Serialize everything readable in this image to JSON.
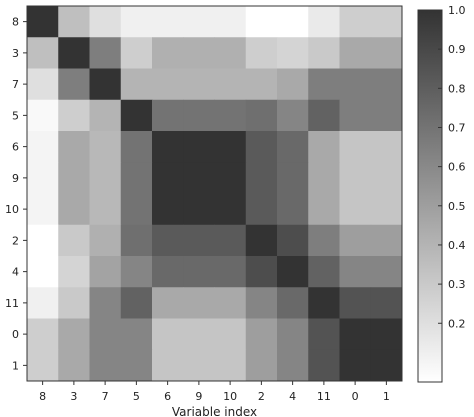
{
  "chart_data": {
    "type": "heatmap",
    "title": "",
    "xlabel": "Variable index",
    "ylabel": "",
    "categories": [
      "8",
      "3",
      "7",
      "5",
      "6",
      "9",
      "10",
      "2",
      "4",
      "11",
      "0",
      "1"
    ],
    "matrix": [
      [
        1.0,
        0.35,
        0.2,
        0.12,
        0.12,
        0.12,
        0.12,
        0.05,
        0.05,
        0.15,
        0.28,
        0.28
      ],
      [
        0.35,
        1.0,
        0.65,
        0.28,
        0.42,
        0.42,
        0.42,
        0.28,
        0.25,
        0.3,
        0.45,
        0.45
      ],
      [
        0.2,
        0.65,
        1.0,
        0.4,
        0.4,
        0.4,
        0.4,
        0.4,
        0.45,
        0.65,
        0.65,
        0.65
      ],
      [
        0.08,
        0.28,
        0.4,
        1.0,
        0.7,
        0.7,
        0.7,
        0.72,
        0.62,
        0.78,
        0.65,
        0.65
      ],
      [
        0.1,
        0.45,
        0.38,
        0.7,
        1.0,
        1.0,
        1.0,
        0.82,
        0.75,
        0.45,
        0.32,
        0.32
      ],
      [
        0.1,
        0.45,
        0.38,
        0.7,
        1.0,
        1.0,
        1.0,
        0.82,
        0.75,
        0.45,
        0.32,
        0.32
      ],
      [
        0.1,
        0.45,
        0.38,
        0.7,
        1.0,
        1.0,
        1.0,
        0.82,
        0.75,
        0.45,
        0.32,
        0.32
      ],
      [
        0.05,
        0.3,
        0.42,
        0.72,
        0.82,
        0.82,
        0.82,
        1.0,
        0.88,
        0.65,
        0.5,
        0.5
      ],
      [
        0.05,
        0.25,
        0.48,
        0.62,
        0.75,
        0.75,
        0.75,
        0.88,
        1.0,
        0.78,
        0.62,
        0.62
      ],
      [
        0.12,
        0.3,
        0.62,
        0.78,
        0.45,
        0.45,
        0.45,
        0.62,
        0.75,
        1.0,
        0.85,
        0.85
      ],
      [
        0.28,
        0.45,
        0.62,
        0.62,
        0.32,
        0.32,
        0.32,
        0.5,
        0.62,
        0.85,
        1.0,
        1.0
      ],
      [
        0.28,
        0.45,
        0.62,
        0.62,
        0.32,
        0.32,
        0.32,
        0.5,
        0.62,
        0.85,
        1.0,
        1.0
      ]
    ],
    "colorscale": {
      "min": 0.05,
      "max": 1.0,
      "low_color": "#ffffff",
      "high_color": "#333333",
      "ticks": [
        "1.0",
        "0.9",
        "0.8",
        "0.7",
        "0.6",
        "0.5",
        "0.4",
        "0.3",
        "0.2"
      ],
      "tick_values": [
        1.0,
        0.9,
        0.8,
        0.7,
        0.6,
        0.5,
        0.4,
        0.3,
        0.2
      ]
    },
    "grid": false,
    "legend": "colorbar-right"
  }
}
